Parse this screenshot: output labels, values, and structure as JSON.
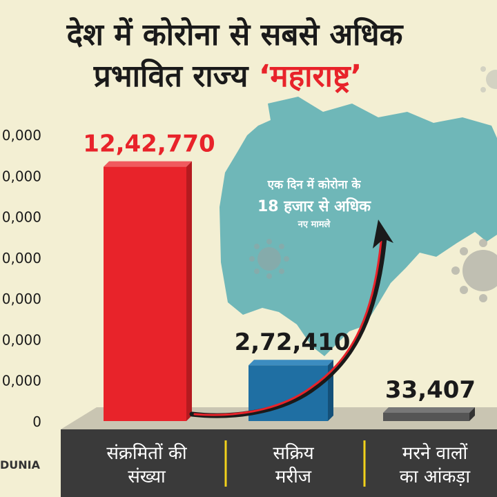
{
  "title": {
    "line1": "देश में कोरोना से सबसे अधिक",
    "line2_prefix": "प्रभावित राज्य ",
    "line2_highlight": "‘महाराष्ट्र’"
  },
  "map_annotation": {
    "line1": "एक दिन में कोरोना के",
    "line2": "18 हजार से अधिक",
    "line3": "नए मामले"
  },
  "brand": "DUNIA",
  "colors": {
    "background": "#f3efd3",
    "bar_infected": "#e8232a",
    "bar_active": "#1f6fa3",
    "bar_deaths": "#555555",
    "map": "#6fb7b8",
    "baseband": "#3a3a3a",
    "accent": "#e8232a"
  },
  "chart_data": {
    "type": "bar",
    "categories": [
      "संक्रमितों की संख्या",
      "सक्रिय मरीज",
      "मरने वालों का आंकड़ा"
    ],
    "category_lines": [
      [
        "संक्रमितों की",
        "संख्या"
      ],
      [
        "सक्रिय",
        "मरीज"
      ],
      [
        "मरने वालों",
        "का आंकड़ा"
      ]
    ],
    "values": [
      1242770,
      272410,
      33407
    ],
    "value_labels": [
      "12,42,770",
      "2,72,410",
      "33,407"
    ],
    "y_ticks": [
      "0",
      "0,000",
      "0,000",
      "0,000",
      "0,000",
      "0,000",
      "0,000",
      "0,000"
    ],
    "ylim": [
      0,
      1400000
    ],
    "grid": false,
    "legend": "none"
  }
}
